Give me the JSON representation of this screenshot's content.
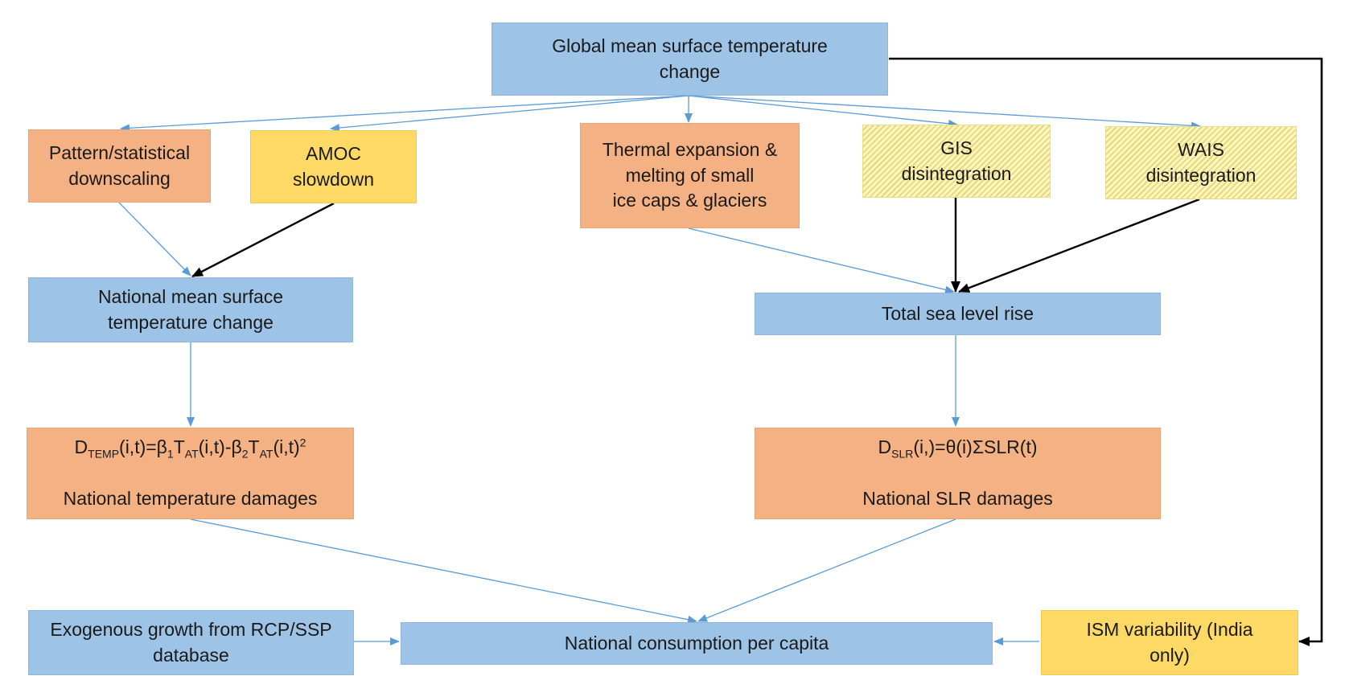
{
  "nodes": {
    "global_temp": {
      "lines": [
        "Global mean surface temperature",
        "change"
      ]
    },
    "pattern": {
      "lines": [
        "Pattern/statistical",
        "downscaling"
      ]
    },
    "amoc": {
      "lines": [
        "AMOC",
        "slowdown"
      ]
    },
    "thermal": {
      "lines": [
        "Thermal expansion &",
        "melting of small",
        "ice caps & glaciers"
      ]
    },
    "gis": {
      "lines": [
        "GIS",
        "disintegration"
      ]
    },
    "wais": {
      "lines": [
        "WAIS",
        "disintegration"
      ]
    },
    "national_temp": {
      "lines": [
        "National mean surface",
        "temperature change"
      ]
    },
    "total_slr": {
      "lines": [
        "Total sea level rise"
      ]
    },
    "temp_damages": {
      "formula": {
        "d": "D",
        "d_sub": "TEMP",
        "p1": "(i,t)=β",
        "b1_sub": "1",
        "t1": "T",
        "t1_sub": "AT",
        "p2": "(i,t)-β",
        "b2_sub": "2",
        "t2": "T",
        "t2_sub": "AT",
        "p3": "(i,t)",
        "sq_sup": "2"
      },
      "label": "National temperature damages"
    },
    "slr_damages": {
      "formula": {
        "d": "D",
        "d_sub": "SLR",
        "rest": "(i,)=θ(i)ΣSLR(t)"
      },
      "label": "National SLR damages"
    },
    "exogenous": {
      "lines": [
        "Exogenous growth from RCP/SSP",
        "database"
      ]
    },
    "consumption": {
      "lines": [
        "National consumption per capita"
      ]
    },
    "ism": {
      "lines": [
        "ISM variability (India",
        "only)"
      ]
    }
  },
  "colors": {
    "blue": "#9dc3e6",
    "orange": "#f4b183",
    "yellow": "#ffd966",
    "hatched_yellow": "#fff6c2",
    "thin_arrow": "#5b9bd5",
    "bold_arrow": "#000000"
  }
}
